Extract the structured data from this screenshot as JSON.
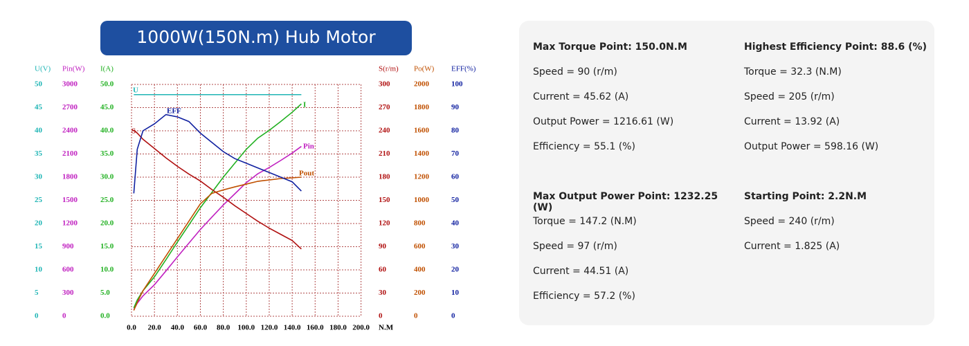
{
  "chart_data": {
    "type": "line",
    "title": "1000W(150N.m) Hub Motor",
    "x": [
      2,
      5,
      10,
      20,
      30,
      40,
      50,
      60,
      70,
      80,
      90,
      100,
      110,
      120,
      130,
      140,
      148
    ],
    "xlim": [
      0,
      200
    ],
    "xticks": [
      {
        "value": 0,
        "label": "0.0"
      },
      {
        "value": 20,
        "label": "20.0"
      },
      {
        "value": 40,
        "label": "40.0"
      },
      {
        "value": 60,
        "label": "60.0"
      },
      {
        "value": 80,
        "label": "80.0"
      },
      {
        "value": 100,
        "label": "100.0"
      },
      {
        "value": 120,
        "label": "120.0"
      },
      {
        "value": 140,
        "label": "140.0"
      },
      {
        "value": 160,
        "label": "160.0"
      },
      {
        "value": 180,
        "label": "180.0"
      },
      {
        "value": 200,
        "label": "200.0"
      }
    ],
    "xlabel": "N.M",
    "grid": true,
    "series": [
      {
        "name": "U",
        "axis_label": "U(V)",
        "color": "#1fb5b5",
        "ylim": [
          0,
          50
        ],
        "yticks": [
          0,
          5,
          10,
          15,
          20,
          25,
          30,
          35,
          40,
          45,
          50
        ],
        "values": [
          47.8,
          47.8,
          47.8,
          47.8,
          47.8,
          47.8,
          47.8,
          47.8,
          47.8,
          47.8,
          47.8,
          47.8,
          47.8,
          47.8,
          47.8,
          47.8,
          47.8
        ]
      },
      {
        "name": "Pin",
        "axis_label": "Pin(W)",
        "color": "#c020c0",
        "ylim": [
          0,
          3000
        ],
        "yticks": [
          0,
          300,
          600,
          900,
          1200,
          1500,
          1800,
          2100,
          2400,
          2700,
          3000
        ],
        "values": [
          86,
          168,
          264,
          408,
          586,
          768,
          946,
          1123,
          1282,
          1440,
          1584,
          1728,
          1843,
          1925,
          2016,
          2112,
          2198
        ]
      },
      {
        "name": "I",
        "axis_label": "I(A)",
        "color": "#20b020",
        "ylim": [
          0,
          50
        ],
        "yticks": [
          {
            "value": 0,
            "label": "0.0"
          },
          {
            "value": 5,
            "label": "5.0"
          },
          {
            "value": 10,
            "label": "10.0"
          },
          {
            "value": 15,
            "label": "15.0"
          },
          {
            "value": 20,
            "label": "20.0"
          },
          {
            "value": 25,
            "label": "25.0"
          },
          {
            "value": 30,
            "label": "30.0"
          },
          {
            "value": 35,
            "label": "35.0"
          },
          {
            "value": 40,
            "label": "40.0"
          },
          {
            "value": 45,
            "label": "45.0"
          },
          {
            "value": 50,
            "label": "50.0"
          }
        ],
        "values": [
          1.8,
          3.5,
          5.5,
          8.5,
          12.2,
          16,
          19.7,
          23.4,
          26.7,
          30,
          33,
          36,
          38.4,
          40.1,
          42,
          44,
          45.8
        ]
      },
      {
        "name": "S",
        "axis_label": "S(r/m)",
        "color": "#b01010",
        "ylim": [
          0,
          300
        ],
        "yticks": [
          0,
          30,
          60,
          90,
          120,
          150,
          180,
          210,
          240,
          270,
          300
        ],
        "values": [
          241,
          237,
          229,
          217,
          205,
          194,
          184,
          175,
          164,
          154,
          143,
          133,
          123,
          114,
          106,
          98,
          87
        ]
      },
      {
        "name": "Pout",
        "axis_label": "Po(W)",
        "color": "#c05000",
        "ylim": [
          0,
          2000
        ],
        "yticks": [
          0,
          200,
          400,
          600,
          800,
          1000,
          1200,
          1400,
          1600,
          1800,
          2000
        ],
        "values": [
          50,
          120,
          220,
          370,
          520,
          670,
          820,
          970,
          1060,
          1090,
          1116,
          1140,
          1164,
          1176,
          1188,
          1194,
          1200
        ]
      },
      {
        "name": "EFF",
        "axis_label": "EFF(%)",
        "color": "#1020a0",
        "ylim": [
          0,
          100
        ],
        "yticks": [
          0,
          10,
          20,
          30,
          40,
          50,
          60,
          70,
          80,
          90,
          100
        ],
        "values": [
          53,
          72,
          80,
          83,
          87,
          86,
          84,
          79,
          75,
          71,
          68,
          66,
          64,
          62,
          60,
          58,
          54
        ]
      }
    ]
  },
  "panel": {
    "sections": [
      {
        "title": "Max Torque Point: 150.0N.M",
        "lines": [
          "Speed = 90 (r/m)",
          "Current = 45.62 (A)",
          "Output Power = 1216.61 (W)",
          "Efficiency = 55.1 (%)"
        ]
      },
      {
        "title": "Highest Efficiency Point: 88.6 (%)",
        "lines": [
          "Torque = 32.3 (N.M)",
          "Speed = 205 (r/m)",
          "Current = 13.92 (A)",
          "Output Power = 598.16 (W)"
        ]
      },
      {
        "title": "Max Output Power Point: 1232.25 (W)",
        "lines": [
          "Torque = 147.2 (N.M)",
          "Speed = 97 (r/m)",
          "Current = 44.51 (A)",
          "Efficiency = 57.2 (%)"
        ]
      },
      {
        "title": "Starting Point: 2.2N.M",
        "lines": [
          "Speed = 240 (r/m)",
          "Current = 1.825 (A)"
        ]
      }
    ]
  }
}
